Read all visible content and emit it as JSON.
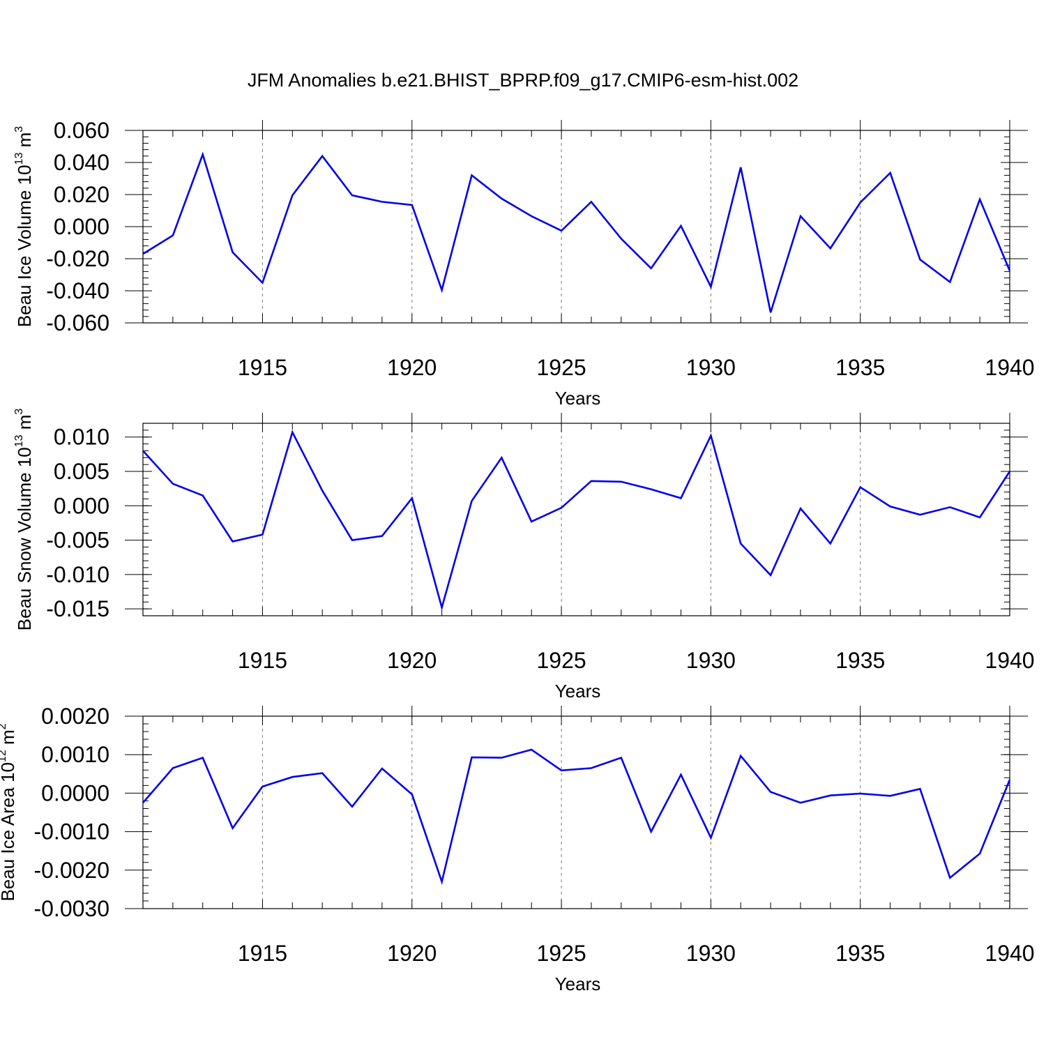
{
  "title": "JFM Anomalies b.e21.BHIST_BPRP.f09_g17.CMIP6-esm-hist.002",
  "colors": {
    "line": "#0000ee",
    "axes": "#000000",
    "grid": "#777777"
  },
  "chart_data": [
    {
      "type": "line",
      "title": "",
      "xlabel": "Years",
      "ylabel": {
        "main": "Beau Ice Volume 10",
        "sup": "13",
        "unit": " m",
        "unit_sup": "3"
      },
      "xlim": [
        1911,
        1940
      ],
      "ylim": [
        -0.06,
        0.06
      ],
      "xticks": [
        1915,
        1920,
        1925,
        1930,
        1935,
        1940
      ],
      "xtick_labels": [
        "1915",
        "1920",
        "1925",
        "1930",
        "1935",
        "1940"
      ],
      "yticks": [
        -0.06,
        -0.04,
        -0.02,
        0.0,
        0.02,
        0.04,
        0.06
      ],
      "ytick_labels": [
        "-0.060",
        "-0.040",
        "-0.020",
        "0.000",
        "0.020",
        "0.040",
        "0.060"
      ],
      "grid": "vertical dashed at major x ticks",
      "x": [
        1911,
        1912,
        1913,
        1914,
        1915,
        1916,
        1917,
        1918,
        1919,
        1920,
        1921,
        1922,
        1923,
        1924,
        1925,
        1926,
        1927,
        1928,
        1929,
        1930,
        1931,
        1932,
        1933,
        1934,
        1935,
        1936,
        1937,
        1938,
        1939,
        1940
      ],
      "series": [
        {
          "values": [
            -0.017,
            -0.0055,
            0.045,
            -0.016,
            -0.035,
            0.0195,
            0.044,
            0.0195,
            0.0155,
            0.0135,
            -0.0395,
            0.032,
            0.0175,
            0.0065,
            -0.0025,
            0.0155,
            -0.0075,
            -0.026,
            0.0005,
            -0.0375,
            0.037,
            -0.0535,
            0.0065,
            -0.0135,
            0.015,
            0.0335,
            -0.0205,
            -0.0345,
            0.017,
            -0.0275
          ]
        }
      ]
    },
    {
      "type": "line",
      "title": "",
      "xlabel": "Years",
      "ylabel": {
        "main": "Beau Snow Volume 10",
        "sup": "13",
        "unit": " m",
        "unit_sup": "3"
      },
      "xlim": [
        1911,
        1940
      ],
      "ylim": [
        -0.016,
        0.012
      ],
      "xticks": [
        1915,
        1920,
        1925,
        1930,
        1935,
        1940
      ],
      "xtick_labels": [
        "1915",
        "1920",
        "1925",
        "1930",
        "1935",
        "1940"
      ],
      "yticks": [
        -0.015,
        -0.01,
        -0.005,
        0.0,
        0.005,
        0.01
      ],
      "ytick_labels": [
        "-0.015",
        "-0.010",
        "-0.005",
        "0.000",
        "0.005",
        "0.010"
      ],
      "grid": "vertical dashed at major x ticks",
      "x": [
        1911,
        1912,
        1913,
        1914,
        1915,
        1916,
        1917,
        1918,
        1919,
        1920,
        1921,
        1922,
        1923,
        1924,
        1925,
        1926,
        1927,
        1928,
        1929,
        1930,
        1931,
        1932,
        1933,
        1934,
        1935,
        1936,
        1937,
        1938,
        1939,
        1940
      ],
      "series": [
        {
          "values": [
            0.008,
            0.0032,
            0.0015,
            -0.0052,
            -0.0042,
            0.0107,
            0.0022,
            -0.005,
            -0.0044,
            0.0011,
            -0.0148,
            0.0007,
            0.007,
            -0.0023,
            -0.0003,
            0.0036,
            0.0035,
            0.0024,
            0.0011,
            0.0102,
            -0.0055,
            -0.0101,
            -0.0004,
            -0.0055,
            0.0027,
            -0.0001,
            -0.0013,
            -0.0002,
            -0.0017,
            0.005
          ]
        }
      ]
    },
    {
      "type": "line",
      "title": "",
      "xlabel": "Years",
      "ylabel": {
        "main": "Beau Ice Area 10",
        "sup": "12",
        "unit": " m",
        "unit_sup": "2"
      },
      "xlim": [
        1911,
        1940
      ],
      "ylim": [
        -0.003,
        0.002
      ],
      "xticks": [
        1915,
        1920,
        1925,
        1930,
        1935,
        1940
      ],
      "xtick_labels": [
        "1915",
        "1920",
        "1925",
        "1930",
        "1935",
        "1940"
      ],
      "yticks": [
        -0.003,
        -0.002,
        -0.001,
        0.0,
        0.001,
        0.002
      ],
      "ytick_labels": [
        "-0.0030",
        "-0.0020",
        "-0.0010",
        "0.0000",
        "0.0010",
        "0.0020"
      ],
      "grid": "vertical dashed at major x ticks",
      "x": [
        1911,
        1912,
        1913,
        1914,
        1915,
        1916,
        1917,
        1918,
        1919,
        1920,
        1921,
        1922,
        1923,
        1924,
        1925,
        1926,
        1927,
        1928,
        1929,
        1930,
        1931,
        1932,
        1933,
        1934,
        1935,
        1936,
        1937,
        1938,
        1939,
        1940
      ],
      "series": [
        {
          "values": [
            -0.00025,
            0.00065,
            0.00092,
            -0.00091,
            0.00017,
            0.00042,
            0.00052,
            -0.00035,
            0.00064,
            -3e-05,
            -0.0023,
            0.00093,
            0.00092,
            0.00113,
            0.00059,
            0.00065,
            0.00092,
            -0.001,
            0.00048,
            -0.00116,
            0.00097,
            3e-05,
            -0.00025,
            -6e-05,
            -1e-05,
            -7e-05,
            0.00011,
            -0.0022,
            -0.00157,
            0.00035
          ]
        }
      ]
    }
  ]
}
